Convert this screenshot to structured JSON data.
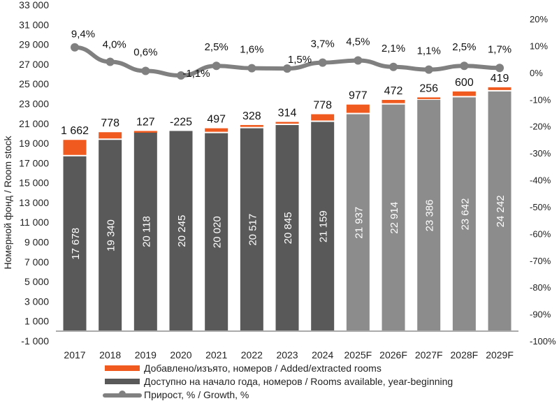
{
  "chart_data": {
    "type": "bar",
    "title": "",
    "ylabel": "Номерной фонд / Room stock",
    "ylim": [
      -1000,
      33000
    ],
    "y_ticks": [
      "33 000",
      "31 000",
      "29 000",
      "27 000",
      "25 000",
      "23 000",
      "21 000",
      "19 000",
      "17 000",
      "15 000",
      "13 000",
      "11 000",
      "9 000",
      "7 000",
      "5 000",
      "3 000",
      "1 000",
      "-1 000"
    ],
    "y2lim": [
      -100,
      20
    ],
    "y2_ticks": [
      "20%",
      "10%",
      "0%",
      "-10%",
      "-20%",
      "-30%",
      "-40%",
      "-50%",
      "-60%",
      "-70%",
      "-80%",
      "-90%",
      "-100%"
    ],
    "grid": false,
    "legend_position": "bottom",
    "categories": [
      "2017",
      "2018",
      "2019",
      "2020",
      "2021",
      "2022",
      "2023",
      "2024",
      "2025F",
      "2026F",
      "2027F",
      "2028F",
      "2029F"
    ],
    "series": [
      {
        "name": "Доступно на начало года, номеров / Rooms available, year-beginning",
        "type": "bar-stacked",
        "values": [
          17678,
          19340,
          20118,
          20245,
          20020,
          20517,
          20845,
          21159,
          21937,
          22914,
          23386,
          23642,
          24242
        ],
        "labels": [
          "17 678",
          "19 340",
          "20 118",
          "20 245",
          "20 020",
          "20 517",
          "20 845",
          "21 159",
          "21 937",
          "22 914",
          "23 386",
          "23 642",
          "24 242"
        ]
      },
      {
        "name": "Добавлено/изъято, номеров / Added/extracted rooms",
        "type": "bar-stacked",
        "values": [
          1662,
          778,
          127,
          -225,
          497,
          328,
          314,
          778,
          977,
          472,
          256,
          600,
          419
        ],
        "labels": [
          "1 662",
          "778",
          "127",
          "-225",
          "497",
          "328",
          "314",
          "778",
          "977",
          "472",
          "256",
          "600",
          "419"
        ]
      },
      {
        "name": "Прирост, % / Growth, %",
        "type": "line",
        "axis": "right",
        "values": [
          9.4,
          4.0,
          0.6,
          -1.1,
          2.5,
          1.6,
          1.5,
          3.7,
          4.5,
          2.1,
          1.1,
          2.5,
          1.7
        ],
        "labels": [
          "9,4%",
          "4,0%",
          "0,6%",
          "-1,1%",
          "2,5%",
          "1,6%",
          "1,5%",
          "3,7%",
          "4,5%",
          "2,1%",
          "1,1%",
          "2,5%",
          "1,7%"
        ]
      }
    ],
    "forecast_from_index": 8,
    "colors": {
      "added": "#f05a1e",
      "available": "#595959",
      "available_forecast": "#8c8c8c",
      "growth": "#808080"
    }
  }
}
